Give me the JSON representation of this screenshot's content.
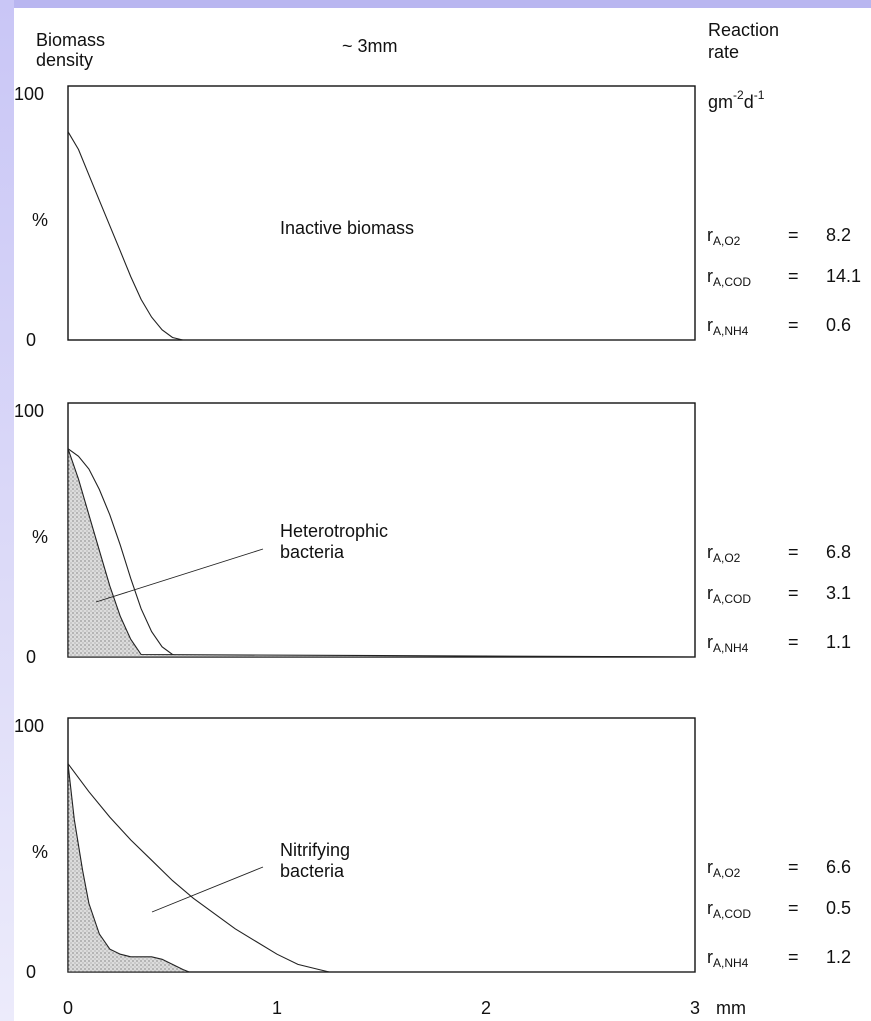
{
  "header": {
    "y_title_line1": "Biomass",
    "y_title_line2": "density",
    "thickness_note": "~ 3mm",
    "rate_title_line1": "Reaction",
    "rate_title_line2": "rate",
    "rate_unit": "gm-2d-1"
  },
  "x_axis": {
    "ticks": [
      "0",
      "1",
      "2",
      "3"
    ],
    "unit": "mm"
  },
  "y_axis": {
    "top_label": "100",
    "unit_label": "%",
    "bottom_label": "0"
  },
  "rate_symbols": {
    "base": "r",
    "sub_o2": "A,O2",
    "sub_cod": "A,COD",
    "sub_nh4": "A,NH4",
    "eq": "="
  },
  "chart_data": [
    {
      "type": "line",
      "label_line1": "Inactive  biomass",
      "label_line2": "",
      "xlim": [
        0,
        3
      ],
      "ylim": [
        0,
        100
      ],
      "xlabel": "mm",
      "ylabel": "%",
      "series": [
        {
          "filled": false,
          "x": [
            0,
            0.05,
            0.1,
            0.15,
            0.2,
            0.25,
            0.3,
            0.35,
            0.4,
            0.45,
            0.5,
            0.55,
            3.0
          ],
          "y": [
            82,
            75,
            65,
            55,
            45,
            35,
            25,
            16,
            9,
            4,
            1,
            0,
            0
          ]
        }
      ],
      "rates": {
        "o2": "8.2",
        "cod": "14.1",
        "nh4": "0.6"
      }
    },
    {
      "type": "line",
      "label_line1": "Heterotrophic",
      "label_line2": "bacteria",
      "xlim": [
        0,
        3
      ],
      "ylim": [
        0,
        100
      ],
      "xlabel": "mm",
      "ylabel": "%",
      "series": [
        {
          "filled": false,
          "x": [
            0,
            0.05,
            0.1,
            0.15,
            0.2,
            0.25,
            0.3,
            0.35,
            0.4,
            0.45,
            0.5,
            0.55,
            3.0
          ],
          "y": [
            82,
            79,
            74,
            66,
            56,
            44,
            31,
            19,
            10,
            4,
            1,
            0,
            0
          ]
        },
        {
          "filled": true,
          "x": [
            0,
            0.05,
            0.1,
            0.15,
            0.2,
            0.25,
            0.3,
            0.35,
            3.0
          ],
          "y": [
            82,
            70,
            56,
            42,
            28,
            16,
            7,
            1,
            0
          ]
        }
      ],
      "rates": {
        "o2": "6.8",
        "cod": "3.1",
        "nh4": "1.1"
      }
    },
    {
      "type": "line",
      "label_line1": "Nitrifying",
      "label_line2": "bacteria",
      "xlim": [
        0,
        3
      ],
      "ylim": [
        0,
        100
      ],
      "xlabel": "mm",
      "ylabel": "%",
      "series": [
        {
          "filled": false,
          "x": [
            0,
            0.1,
            0.2,
            0.3,
            0.4,
            0.5,
            0.6,
            0.7,
            0.8,
            0.9,
            1.0,
            1.1,
            1.2,
            1.25,
            3.0
          ],
          "y": [
            82,
            71,
            61,
            52,
            44,
            36,
            29,
            23,
            17,
            12,
            7,
            3,
            1,
            0,
            0
          ]
        },
        {
          "filled": true,
          "x": [
            0,
            0.03,
            0.07,
            0.1,
            0.15,
            0.2,
            0.25,
            0.3,
            0.4,
            0.45,
            0.5,
            0.55,
            0.58,
            3.0
          ],
          "y": [
            82,
            60,
            40,
            27,
            15,
            9,
            7,
            6,
            6,
            5,
            3,
            1,
            0,
            0
          ]
        }
      ],
      "rates": {
        "o2": "6.6",
        "cod": "0.5",
        "nh4": "1.2"
      }
    }
  ]
}
